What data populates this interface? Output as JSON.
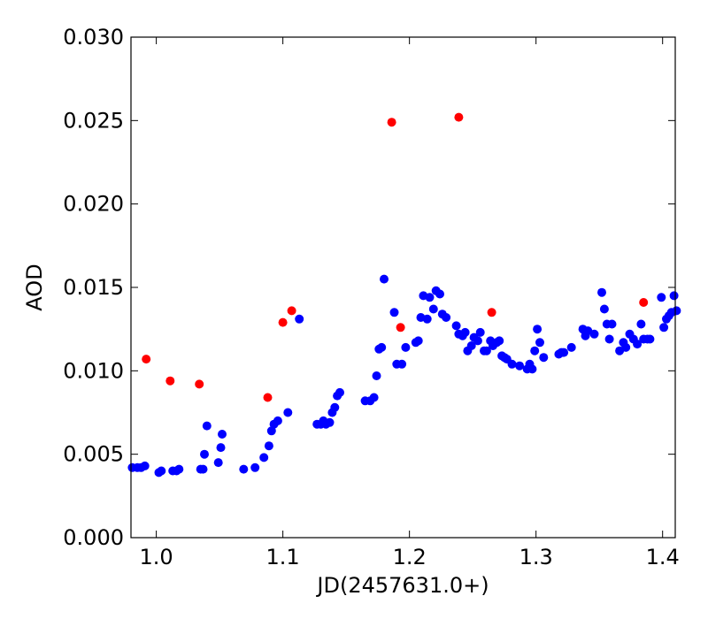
{
  "chart_data": {
    "type": "scatter",
    "xlabel": "JD(2457631.0+)",
    "ylabel": "AOD",
    "xlim": [
      0.98,
      1.41
    ],
    "ylim": [
      0.0,
      0.03
    ],
    "xticks": [
      "1.0",
      "1.1",
      "1.2",
      "1.3",
      "1.4"
    ],
    "yticks": [
      "0.000",
      "0.005",
      "0.010",
      "0.015",
      "0.020",
      "0.025",
      "0.030"
    ],
    "grid": false,
    "series": [
      {
        "color": "#0000ff",
        "x": [
          0.981,
          0.985,
          0.988,
          0.991,
          1.002,
          1.004,
          1.013,
          1.016,
          1.018,
          1.035,
          1.037,
          1.038,
          1.04,
          1.049,
          1.051,
          1.052,
          1.069,
          1.078,
          1.085,
          1.089,
          1.091,
          1.093,
          1.096,
          1.104,
          1.113,
          1.127,
          1.13,
          1.132,
          1.134,
          1.137,
          1.139,
          1.141,
          1.143,
          1.145,
          1.165,
          1.169,
          1.172,
          1.174,
          1.176,
          1.178,
          1.18,
          1.188,
          1.19,
          1.194,
          1.197,
          1.205,
          1.207,
          1.209,
          1.211,
          1.214,
          1.216,
          1.219,
          1.221,
          1.224,
          1.226,
          1.229,
          1.237,
          1.239,
          1.242,
          1.244,
          1.246,
          1.249,
          1.251,
          1.254,
          1.256,
          1.259,
          1.261,
          1.264,
          1.266,
          1.269,
          1.271,
          1.273,
          1.275,
          1.277,
          1.281,
          1.287,
          1.293,
          1.295,
          1.297,
          1.299,
          1.301,
          1.303,
          1.306,
          1.318,
          1.32,
          1.322,
          1.328,
          1.337,
          1.339,
          1.341,
          1.346,
          1.352,
          1.354,
          1.356,
          1.358,
          1.36,
          1.366,
          1.369,
          1.371,
          1.374,
          1.377,
          1.38,
          1.383,
          1.385,
          1.388,
          1.39,
          1.399,
          1.401,
          1.403,
          1.405,
          1.407,
          1.409,
          1.411
        ],
        "y": [
          0.0042,
          0.0042,
          0.0042,
          0.0043,
          0.0039,
          0.004,
          0.004,
          0.004,
          0.0041,
          0.0041,
          0.0041,
          0.005,
          0.0067,
          0.0045,
          0.0054,
          0.0062,
          0.0041,
          0.0042,
          0.0048,
          0.0055,
          0.0064,
          0.0068,
          0.007,
          0.0075,
          0.0131,
          0.0068,
          0.0068,
          0.007,
          0.0068,
          0.0069,
          0.0075,
          0.0078,
          0.0085,
          0.0087,
          0.0082,
          0.0082,
          0.0084,
          0.0097,
          0.0113,
          0.0114,
          0.0155,
          0.0135,
          0.0104,
          0.0104,
          0.0114,
          0.0117,
          0.0118,
          0.0132,
          0.0145,
          0.0131,
          0.0144,
          0.0137,
          0.0148,
          0.0146,
          0.0134,
          0.0132,
          0.0127,
          0.0122,
          0.0121,
          0.0123,
          0.0112,
          0.0115,
          0.012,
          0.0118,
          0.0123,
          0.0112,
          0.0112,
          0.0118,
          0.0115,
          0.0117,
          0.0118,
          0.0109,
          0.0108,
          0.0107,
          0.0104,
          0.0103,
          0.0101,
          0.0104,
          0.0101,
          0.0112,
          0.0125,
          0.0117,
          0.0108,
          0.011,
          0.0111,
          0.0111,
          0.0114,
          0.0125,
          0.0121,
          0.0124,
          0.0122,
          0.0147,
          0.0137,
          0.0128,
          0.0119,
          0.0128,
          0.0112,
          0.0117,
          0.0114,
          0.0122,
          0.0119,
          0.0116,
          0.0128,
          0.0119,
          0.0119,
          0.0119,
          0.0144,
          0.0126,
          0.0131,
          0.0133,
          0.0135,
          0.0145,
          0.0136
        ]
      },
      {
        "color": "#ff0000",
        "x": [
          0.992,
          1.011,
          1.034,
          1.088,
          1.1,
          1.107,
          1.186,
          1.193,
          1.239,
          1.265,
          1.385
        ],
        "y": [
          0.0107,
          0.0094,
          0.0092,
          0.0084,
          0.0129,
          0.0136,
          0.0249,
          0.0126,
          0.0252,
          0.0135,
          0.0141
        ]
      }
    ]
  }
}
